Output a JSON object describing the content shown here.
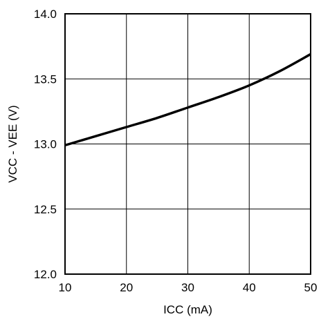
{
  "chart_data": {
    "type": "line",
    "xlabel": "ICC (mA)",
    "ylabel": "VCC - VEE (V)",
    "xlim": [
      10,
      50
    ],
    "ylim": [
      12.0,
      14.0
    ],
    "x_ticks": [
      10,
      20,
      30,
      40,
      50
    ],
    "y_ticks": [
      12.0,
      12.5,
      13.0,
      13.5,
      14.0
    ],
    "x_tick_labels": [
      "10",
      "20",
      "30",
      "40",
      "50"
    ],
    "y_tick_labels": [
      "12.0",
      "12.5",
      "13.0",
      "13.5",
      "14.0"
    ],
    "grid": true,
    "series": [
      {
        "x": [
          10,
          15,
          20,
          25,
          30,
          35,
          40,
          45,
          50
        ],
        "y": [
          12.99,
          13.06,
          13.13,
          13.2,
          13.28,
          13.36,
          13.45,
          13.56,
          13.69
        ],
        "color": "#000000"
      }
    ]
  }
}
